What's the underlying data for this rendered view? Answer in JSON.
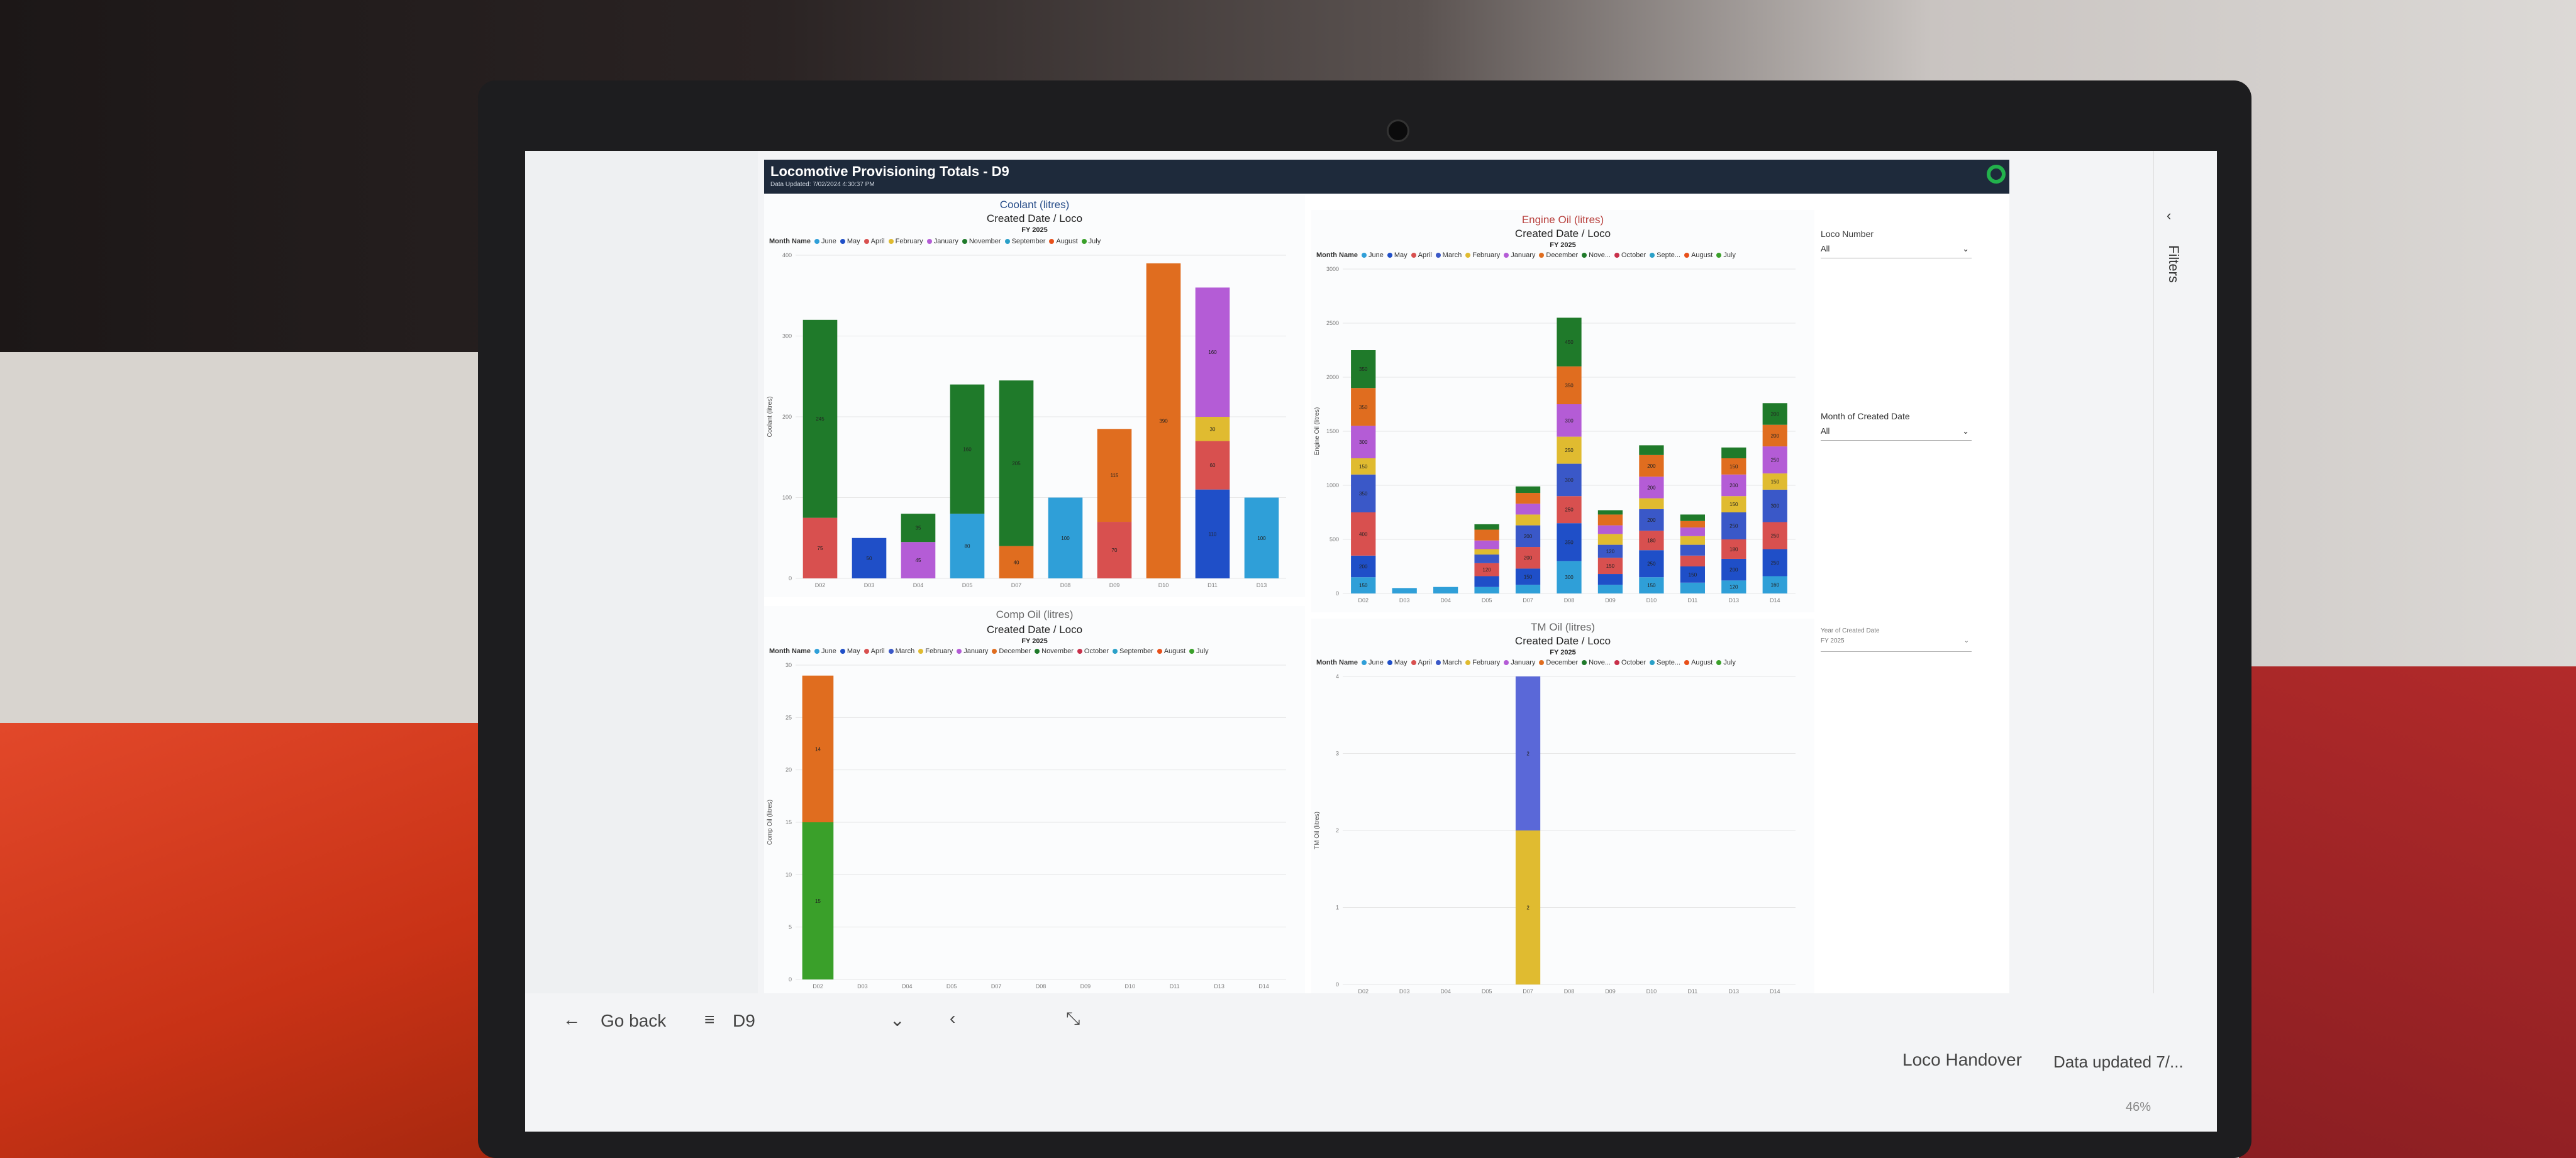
{
  "report": {
    "title": "Locomotive Provisioning Totals - D9",
    "updated": "Data Updated: 7/02/2024 4:30:37 PM"
  },
  "colors": {
    "june": "#2f9fd8",
    "may": "#1f4fc8",
    "april": "#d8504f",
    "march": "#3a58c8",
    "february": "#e0bb30",
    "january": "#b45cd6",
    "december": "#e06d1f",
    "november": "#1f7a2a",
    "october": "#c8304a",
    "september": "#2aa0c8",
    "august": "#e8501a",
    "july": "#3aa02a",
    "dark": "#3a2a55"
  },
  "charts": {
    "coolant": {
      "title": "Coolant (litres)",
      "subtitle": "Created Date / Loco",
      "fy": "FY 2025",
      "legend_title": "Month Name",
      "legend": [
        "June",
        "May",
        "April",
        "February",
        "January",
        "November",
        "September",
        "August",
        "July"
      ],
      "ylabel": "Coolant (litres)"
    },
    "engine": {
      "title": "Engine Oil (litres)",
      "subtitle": "Created Date / Loco",
      "fy": "FY 2025",
      "legend_title": "Month Name",
      "legend": [
        "June",
        "May",
        "April",
        "March",
        "February",
        "January",
        "December",
        "Nove...",
        "October",
        "Septe...",
        "August",
        "July"
      ],
      "ylabel": "Engine Oil (litres)"
    },
    "comp": {
      "title": "Comp Oil (litres)",
      "subtitle": "Created Date / Loco",
      "fy": "FY 2025",
      "legend_title": "Month Name",
      "legend": [
        "June",
        "May",
        "April",
        "March",
        "February",
        "January",
        "December",
        "November",
        "October",
        "September",
        "August",
        "July"
      ],
      "ylabel": "Comp Oil (litres)"
    },
    "tm": {
      "title": "TM Oil (litres)",
      "subtitle": "Created Date / Loco",
      "fy": "FY 2025",
      "legend_title": "Month Name",
      "legend": [
        "June",
        "May",
        "April",
        "March",
        "February",
        "January",
        "December",
        "Nove...",
        "October",
        "Septe...",
        "August",
        "July"
      ],
      "ylabel": "TM Oil (litres)"
    }
  },
  "filters": {
    "loco_number_label": "Loco Number",
    "loco_number_value": "All",
    "month_label": "Month of Created Date",
    "month_value": "All",
    "year_label": "Year of Created Date",
    "year_value": "FY 2025",
    "pane_label": "Filters"
  },
  "nav": {
    "go_back": "Go back",
    "page": "D9",
    "loco_handover": "Loco Handover",
    "data_updated": "Data updated 7/...",
    "zoom": "46%"
  },
  "chart_data": [
    {
      "type": "bar",
      "stacked": true,
      "name": "coolant",
      "categories": [
        "D02",
        "D03",
        "D04",
        "D05",
        "D07",
        "D08",
        "D09",
        "D10",
        "D11",
        "D13"
      ],
      "ylim": [
        0,
        400
      ],
      "yticks": [
        0,
        100,
        200,
        300,
        400
      ],
      "series": [
        {
          "name": "June",
          "color": "#2f9fd8",
          "values": [
            0,
            0,
            0,
            80,
            0,
            100,
            0,
            0,
            0,
            100
          ]
        },
        {
          "name": "May",
          "color": "#1f4fc8",
          "values": [
            0,
            50,
            0,
            0,
            0,
            0,
            0,
            0,
            110,
            0
          ]
        },
        {
          "name": "April",
          "color": "#d8504f",
          "values": [
            75,
            0,
            0,
            0,
            0,
            0,
            70,
            0,
            60,
            0
          ]
        },
        {
          "name": "February",
          "color": "#e0bb30",
          "values": [
            0,
            0,
            0,
            0,
            0,
            0,
            0,
            0,
            30,
            0
          ]
        },
        {
          "name": "January",
          "color": "#b45cd6",
          "values": [
            0,
            0,
            45,
            0,
            0,
            0,
            0,
            0,
            160,
            0
          ]
        },
        {
          "name": "December",
          "color": "#e06d1f",
          "values": [
            0,
            0,
            0,
            0,
            40,
            0,
            115,
            390,
            0,
            0
          ]
        },
        {
          "name": "November",
          "color": "#1f7a2a",
          "values": [
            245,
            0,
            35,
            160,
            205,
            0,
            0,
            0,
            0,
            0
          ]
        }
      ]
    },
    {
      "type": "bar",
      "stacked": true,
      "name": "engine",
      "categories": [
        "D02",
        "D03",
        "D04",
        "D05",
        "D07",
        "D08",
        "D09",
        "D10",
        "D11",
        "D13",
        "D14"
      ],
      "ylim": [
        0,
        3000
      ],
      "yticks": [
        0,
        500,
        1000,
        1500,
        2000,
        2500,
        3000
      ],
      "series": [
        {
          "name": "June",
          "color": "#2f9fd8",
          "values": [
            150,
            50,
            60,
            60,
            80,
            300,
            80,
            150,
            100,
            120,
            160
          ]
        },
        {
          "name": "May",
          "color": "#1f4fc8",
          "values": [
            200,
            0,
            0,
            100,
            150,
            350,
            100,
            250,
            150,
            200,
            250
          ]
        },
        {
          "name": "April",
          "color": "#d8504f",
          "values": [
            400,
            0,
            0,
            120,
            200,
            250,
            150,
            180,
            100,
            180,
            250
          ]
        },
        {
          "name": "March",
          "color": "#3a58c8",
          "values": [
            350,
            0,
            0,
            80,
            200,
            300,
            120,
            200,
            100,
            250,
            300
          ]
        },
        {
          "name": "February",
          "color": "#e0bb30",
          "values": [
            150,
            0,
            0,
            50,
            100,
            250,
            100,
            100,
            80,
            150,
            150
          ]
        },
        {
          "name": "January",
          "color": "#b45cd6",
          "values": [
            300,
            0,
            0,
            80,
            100,
            300,
            80,
            200,
            80,
            200,
            250
          ]
        },
        {
          "name": "December",
          "color": "#e06d1f",
          "values": [
            350,
            0,
            0,
            100,
            100,
            350,
            100,
            200,
            60,
            150,
            200
          ]
        },
        {
          "name": "November",
          "color": "#1f7a2a",
          "values": [
            350,
            0,
            0,
            50,
            60,
            450,
            40,
            90,
            60,
            100,
            200
          ]
        }
      ]
    },
    {
      "type": "bar",
      "stacked": true,
      "name": "comp",
      "categories": [
        "D02",
        "D03",
        "D04",
        "D05",
        "D07",
        "D08",
        "D09",
        "D10",
        "D11",
        "D13",
        "D14"
      ],
      "ylim": [
        0,
        30
      ],
      "yticks": [
        0,
        5,
        10,
        15,
        20,
        25,
        30
      ],
      "series": [
        {
          "name": "November",
          "color": "#3aa02a",
          "values": [
            15,
            0,
            0,
            0,
            0,
            0,
            0,
            0,
            0,
            0,
            0
          ]
        },
        {
          "name": "December",
          "color": "#e06d1f",
          "values": [
            14,
            0,
            0,
            0,
            0,
            0,
            0,
            0,
            0,
            0,
            0
          ]
        }
      ]
    },
    {
      "type": "bar",
      "stacked": true,
      "name": "tm",
      "categories": [
        "D02",
        "D03",
        "D04",
        "D05",
        "D07",
        "D08",
        "D09",
        "D10",
        "D11",
        "D13",
        "D14"
      ],
      "ylim": [
        0,
        4
      ],
      "yticks": [
        0,
        1,
        2,
        3,
        4
      ],
      "series": [
        {
          "name": "February",
          "color": "#e0bb30",
          "values": [
            0,
            0,
            0,
            0,
            2,
            0,
            0,
            0,
            0,
            0,
            0
          ]
        },
        {
          "name": "March",
          "color": "#5a68d8",
          "values": [
            0,
            0,
            0,
            0,
            2,
            0,
            0,
            0,
            0,
            0,
            0
          ]
        }
      ]
    }
  ]
}
